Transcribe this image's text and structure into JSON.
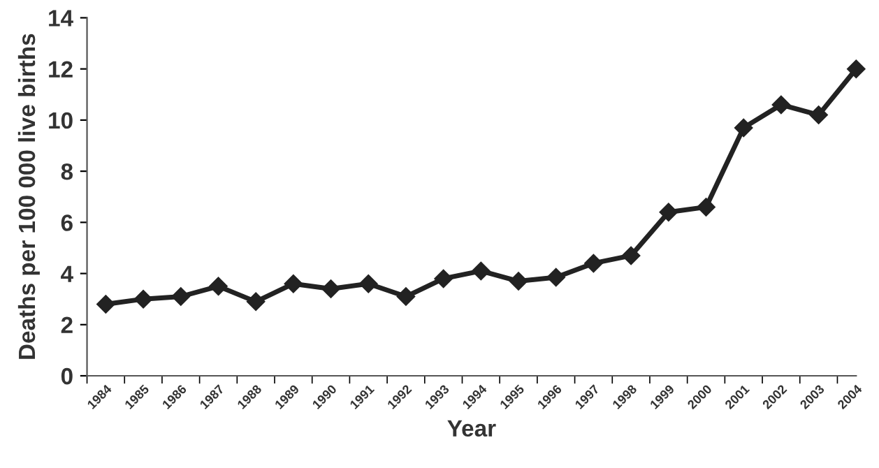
{
  "chart_data": {
    "type": "line",
    "xlabel": "Year",
    "ylabel": "Deaths per 100 000 live births",
    "categories": [
      "1984",
      "1985",
      "1986",
      "1987",
      "1988",
      "1989",
      "1990",
      "1991",
      "1992",
      "1993",
      "1994",
      "1995",
      "1996",
      "1997",
      "1998",
      "1999",
      "2000",
      "2001",
      "2002",
      "2003",
      "2004"
    ],
    "series": [
      {
        "color": "#222222",
        "values": [
          2.8,
          3.0,
          3.1,
          3.5,
          2.9,
          3.6,
          3.4,
          3.6,
          3.1,
          3.8,
          4.1,
          3.7,
          3.85,
          4.4,
          4.7,
          6.4,
          6.6,
          9.7,
          10.6,
          10.2,
          12.0
        ]
      }
    ],
    "ylim": [
      0,
      14
    ],
    "yticks": [
      0,
      2,
      4,
      6,
      8,
      10,
      12,
      14
    ],
    "marker": "diamond",
    "line_style": "solid",
    "grid": false,
    "legend": false
  }
}
